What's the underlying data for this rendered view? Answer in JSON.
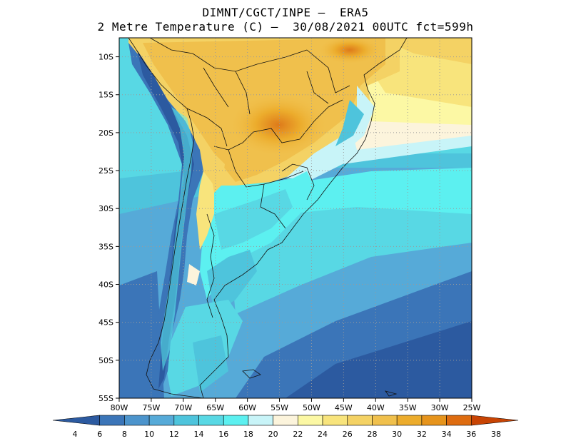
{
  "header": {
    "title_line1": "DIMNT/CGCT/INPE –  ERA5",
    "title_line2": "2 Metre Temperature (C) –  30/08/2021 00UTC fct=599h"
  },
  "map": {
    "lon_range": [
      -80,
      -25
    ],
    "lat_range": [
      -55,
      -7.5
    ],
    "lon_ticks": [
      {
        "value": -80,
        "label": "80W"
      },
      {
        "value": -75,
        "label": "75W"
      },
      {
        "value": -70,
        "label": "70W"
      },
      {
        "value": -65,
        "label": "65W"
      },
      {
        "value": -60,
        "label": "60W"
      },
      {
        "value": -55,
        "label": "55W"
      },
      {
        "value": -50,
        "label": "50W"
      },
      {
        "value": -45,
        "label": "45W"
      },
      {
        "value": -40,
        "label": "40W"
      },
      {
        "value": -35,
        "label": "35W"
      },
      {
        "value": -30,
        "label": "30W"
      },
      {
        "value": -25,
        "label": "25W"
      }
    ],
    "lat_ticks": [
      {
        "value": -10,
        "label": "10S"
      },
      {
        "value": -15,
        "label": "15S"
      },
      {
        "value": -20,
        "label": "20S"
      },
      {
        "value": -25,
        "label": "25S"
      },
      {
        "value": -30,
        "label": "30S"
      },
      {
        "value": -35,
        "label": "35S"
      },
      {
        "value": -40,
        "label": "40S"
      },
      {
        "value": -45,
        "label": "45S"
      },
      {
        "value": -50,
        "label": "50S"
      },
      {
        "value": -55,
        "label": "55S"
      }
    ],
    "grid": "dotted"
  },
  "colorbar": {
    "labels": [
      "4",
      "6",
      "8",
      "10",
      "12",
      "14",
      "16",
      "18",
      "20",
      "22",
      "24",
      "26",
      "28",
      "30",
      "32",
      "34",
      "36",
      "38"
    ],
    "colors": [
      "#2c5aa0",
      "#3b75b8",
      "#4c94cc",
      "#56aad8",
      "#4ec4dc",
      "#58d8e4",
      "#5cf0f0",
      "#c8f4f8",
      "#fcf4dc",
      "#fcf8a4",
      "#f8e47c",
      "#f4d264",
      "#f0c04c",
      "#ecac2c",
      "#e6941c",
      "#de6c10",
      "#c84404"
    ]
  }
}
